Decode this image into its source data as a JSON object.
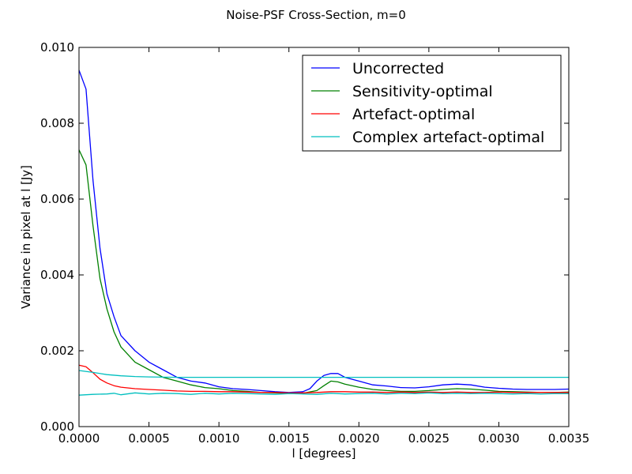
{
  "chart_data": {
    "type": "line",
    "title": "Noise-PSF Cross-Section, m=0",
    "xlabel": "l [degrees]",
    "ylabel": "Variance in pixel at l [Jy]",
    "xlim": [
      0,
      0.0035
    ],
    "ylim": [
      0,
      0.01
    ],
    "xticks": [
      "0.0000",
      "0.0005",
      "0.0010",
      "0.0015",
      "0.0020",
      "0.0025",
      "0.0030",
      "0.0035"
    ],
    "yticks": [
      "0.000",
      "0.002",
      "0.004",
      "0.006",
      "0.008",
      "0.010"
    ],
    "xtick_values": [
      0,
      0.0005,
      0.001,
      0.0015,
      0.002,
      0.0025,
      0.003,
      0.0035
    ],
    "ytick_values": [
      0,
      0.002,
      0.004,
      0.006,
      0.008,
      0.01
    ],
    "grid": false,
    "legend_position": "top-right",
    "series": [
      {
        "name": "Uncorrected",
        "color": "#0000ff",
        "x": [
          0,
          5e-05,
          0.0001,
          0.00015,
          0.0002,
          0.00025,
          0.0003,
          0.0004,
          0.0005,
          0.0006,
          0.0007,
          0.0008,
          0.0009,
          0.001,
          0.0011,
          0.0012,
          0.0013,
          0.0014,
          0.0015,
          0.0016,
          0.00165,
          0.0017,
          0.00175,
          0.0018,
          0.00185,
          0.0019,
          0.00195,
          0.002,
          0.0021,
          0.0022,
          0.0023,
          0.0024,
          0.0025,
          0.0026,
          0.0027,
          0.0028,
          0.0029,
          0.003,
          0.0031,
          0.0032,
          0.0033,
          0.0034,
          0.0035
        ],
        "values": [
          0.0094,
          0.0089,
          0.0065,
          0.0047,
          0.0035,
          0.0029,
          0.0024,
          0.002,
          0.0017,
          0.0015,
          0.0013,
          0.0012,
          0.00115,
          0.00105,
          0.001,
          0.00098,
          0.00095,
          0.00092,
          0.0009,
          0.00092,
          0.001,
          0.0012,
          0.00135,
          0.0014,
          0.0014,
          0.0013,
          0.00125,
          0.0012,
          0.0011,
          0.00107,
          0.00103,
          0.00102,
          0.00105,
          0.0011,
          0.00112,
          0.0011,
          0.00104,
          0.00101,
          0.00099,
          0.00098,
          0.00098,
          0.00098,
          0.00099
        ]
      },
      {
        "name": "Sensitivity-optimal",
        "color": "#008000",
        "x": [
          0,
          5e-05,
          0.0001,
          0.00015,
          0.0002,
          0.00025,
          0.0003,
          0.0004,
          0.0005,
          0.0006,
          0.0007,
          0.0008,
          0.0009,
          0.001,
          0.0011,
          0.0012,
          0.0013,
          0.0014,
          0.0015,
          0.0016,
          0.0017,
          0.00175,
          0.0018,
          0.00185,
          0.0019,
          0.002,
          0.0021,
          0.0022,
          0.0023,
          0.0024,
          0.0025,
          0.0026,
          0.0027,
          0.0028,
          0.0029,
          0.003,
          0.0031,
          0.0032,
          0.0033,
          0.0034,
          0.0035
        ],
        "values": [
          0.0073,
          0.0069,
          0.0053,
          0.0039,
          0.0031,
          0.0025,
          0.0021,
          0.0017,
          0.0015,
          0.0013,
          0.0012,
          0.0011,
          0.00103,
          0.001,
          0.00095,
          0.00093,
          0.0009,
          0.00089,
          0.00088,
          0.00088,
          0.00095,
          0.00108,
          0.0012,
          0.00118,
          0.00112,
          0.00104,
          0.00098,
          0.00095,
          0.00093,
          0.00093,
          0.00095,
          0.00098,
          0.001,
          0.00099,
          0.00096,
          0.00093,
          0.00092,
          0.00091,
          0.0009,
          0.0009,
          0.00091
        ]
      },
      {
        "name": "Artefact-optimal",
        "color": "#ff0000",
        "x": [
          0,
          5e-05,
          0.0001,
          0.00015,
          0.0002,
          0.00025,
          0.0003,
          0.0004,
          0.0005,
          0.0006,
          0.0007,
          0.0008,
          0.0009,
          0.001,
          0.0011,
          0.0012,
          0.0013,
          0.0014,
          0.0015,
          0.0016,
          0.0017,
          0.0018,
          0.0019,
          0.002,
          0.0021,
          0.0022,
          0.0023,
          0.0024,
          0.0025,
          0.0026,
          0.0027,
          0.0028,
          0.0029,
          0.003,
          0.0031,
          0.0032,
          0.0033,
          0.0034,
          0.0035
        ],
        "values": [
          0.00162,
          0.00158,
          0.00142,
          0.00125,
          0.00115,
          0.00108,
          0.00104,
          0.001,
          0.00098,
          0.00096,
          0.00094,
          0.00093,
          0.00093,
          0.00092,
          0.00092,
          0.00091,
          0.0009,
          0.0009,
          0.00089,
          0.00089,
          0.0009,
          0.00092,
          0.00092,
          0.00091,
          0.00091,
          0.0009,
          0.00091,
          0.0009,
          0.00091,
          0.0009,
          0.00091,
          0.0009,
          0.0009,
          0.00091,
          0.0009,
          0.0009,
          0.0009,
          0.0009,
          0.0009
        ]
      },
      {
        "name": "Complex artefact-optimal",
        "color": "#00bfbf",
        "x": [
          0,
          0.0001,
          0.0002,
          0.0003,
          0.0004,
          0.0005,
          0.0007,
          0.001,
          0.0015,
          0.002,
          0.0025,
          0.003,
          0.0035
        ],
        "values": [
          0.00148,
          0.00143,
          0.00137,
          0.00134,
          0.00132,
          0.00131,
          0.0013,
          0.0013,
          0.0013,
          0.0013,
          0.0013,
          0.0013,
          0.0013
        ]
      },
      {
        "color": "#00bfbf",
        "x": [
          0,
          0.0001,
          0.0002,
          0.00025,
          0.0003,
          0.0004,
          0.0005,
          0.0006,
          0.0007,
          0.0008,
          0.0009,
          0.001,
          0.0011,
          0.0012,
          0.0013,
          0.0014,
          0.0015,
          0.0016,
          0.0017,
          0.0018,
          0.0019,
          0.002,
          0.0021,
          0.0022,
          0.0023,
          0.0024,
          0.0025,
          0.0026,
          0.0027,
          0.0028,
          0.0029,
          0.003,
          0.0031,
          0.0032,
          0.0033,
          0.0034,
          0.0035
        ],
        "values": [
          0.00083,
          0.00085,
          0.00086,
          0.00088,
          0.00084,
          0.00089,
          0.00086,
          0.00088,
          0.00087,
          0.00085,
          0.00088,
          0.00086,
          0.00088,
          0.00087,
          0.00086,
          0.00085,
          0.00087,
          0.00086,
          0.00085,
          0.00088,
          0.00086,
          0.00087,
          0.00088,
          0.00086,
          0.00088,
          0.00087,
          0.00089,
          0.00087,
          0.00088,
          0.00087,
          0.00088,
          0.00087,
          0.00086,
          0.00087,
          0.00086,
          0.00087,
          0.00087
        ]
      }
    ]
  }
}
